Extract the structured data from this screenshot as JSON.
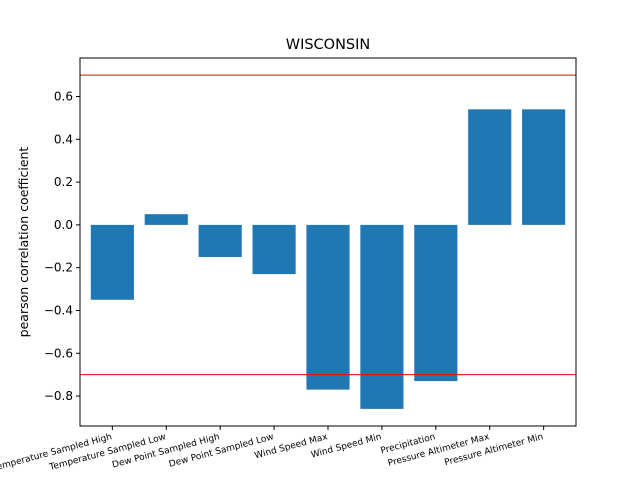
{
  "chart_data": {
    "type": "bar",
    "title": "WISCONSIN",
    "xlabel": "",
    "ylabel": "pearson correlation coefficient",
    "categories": [
      "Temperature Sampled High",
      "Temperature Sampled Low",
      "Dew Point Sampled High",
      "Dew Point Sampled Low",
      "Wind Speed Max",
      "Wind Speed Min",
      "Precipitation",
      "Pressure Altimeter Max",
      "Pressure Altimeter Min"
    ],
    "values": [
      -0.35,
      0.05,
      -0.15,
      -0.23,
      -0.77,
      -0.86,
      -0.73,
      0.54,
      0.54
    ],
    "ylim": [
      -0.94,
      0.78
    ],
    "yticks": [
      -0.8,
      -0.6,
      -0.4,
      -0.2,
      0.0,
      0.2,
      0.4,
      0.6
    ],
    "ytick_labels": [
      "−0.8",
      "−0.6",
      "−0.4",
      "−0.2",
      "0.0",
      "0.2",
      "0.4",
      "0.6"
    ],
    "reference_lines": [
      0.7,
      -0.7
    ],
    "grid": false,
    "bar_color": "#1f77b4",
    "reference_line_color": "#ff0000"
  }
}
